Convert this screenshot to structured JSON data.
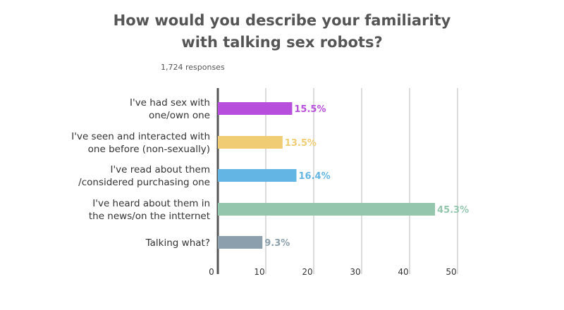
{
  "chart_data": {
    "type": "bar",
    "orientation": "horizontal",
    "title_lines": [
      "How would you describe your familiarity",
      "with talking sex robots?"
    ],
    "subtitle": "1,724 responses",
    "xlim": [
      0,
      50
    ],
    "x_ticks": [
      "0",
      "10",
      "20",
      "30",
      "40",
      "50"
    ],
    "grid": true,
    "categories": [
      [
        "I've had sex with",
        "one/own one"
      ],
      [
        "I've seen and interacted with",
        "one before (non-sexually)"
      ],
      [
        "I've read about them",
        "/considered purchasing one"
      ],
      [
        "I've heard about them in",
        "the news/on the intternet"
      ],
      [
        "Talking what?"
      ]
    ],
    "values": [
      15.5,
      13.5,
      16.4,
      45.3,
      9.3
    ],
    "value_labels": [
      "15.5%",
      "13.5%",
      "16.4%",
      "45.3%",
      "9.3%"
    ],
    "colors": [
      "#b84fdc",
      "#f0cc74",
      "#63b6e4",
      "#94c6ad",
      "#8ba0ac"
    ]
  }
}
